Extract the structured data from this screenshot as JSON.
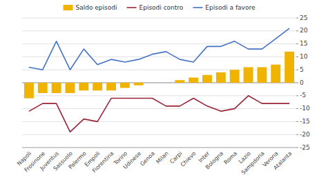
{
  "chart_data": {
    "type": "bar",
    "categories": [
      "Napoli",
      "Frosinone",
      "Juventus",
      "Sassuolo",
      "Palermo",
      "Empoli",
      "Fiorentina",
      "Torino",
      "Udinese",
      "Genoa",
      "Milan",
      "Carpi",
      "Chievo",
      "Inter",
      "Bologna",
      "Roma",
      "Lazio",
      "Sampdoria",
      "Verona",
      "Atalanta"
    ],
    "series": [
      {
        "name": "Saldo episodi",
        "type": "bar",
        "color": "#f0b400",
        "values": [
          -6,
          -4,
          -4,
          -4,
          -3,
          -3,
          -3,
          -2,
          -1,
          0,
          0,
          1,
          2,
          3,
          4,
          5,
          6,
          6,
          7,
          12
        ]
      },
      {
        "name": "Episodi contro",
        "type": "line",
        "color": "#9B2335",
        "values": [
          -11,
          -8,
          -8,
          -19,
          -14,
          -15,
          -6,
          -6,
          -6,
          -6,
          -9,
          -9,
          -6,
          -9,
          -11,
          -10,
          -5,
          -8,
          -8,
          -8
        ]
      },
      {
        "name": "Episodi a favore",
        "type": "line",
        "color": "#4472C4",
        "values": [
          6,
          5,
          16,
          5,
          13,
          7,
          9,
          8,
          9,
          11,
          12,
          9,
          8,
          14,
          14,
          16,
          13,
          13,
          17,
          21
        ]
      }
    ],
    "ylim": [
      -25,
      25
    ],
    "yticks": [
      -25,
      -20,
      -15,
      -10,
      -5,
      0,
      5,
      10,
      15,
      20,
      25
    ],
    "grid": true,
    "legend": "top"
  }
}
